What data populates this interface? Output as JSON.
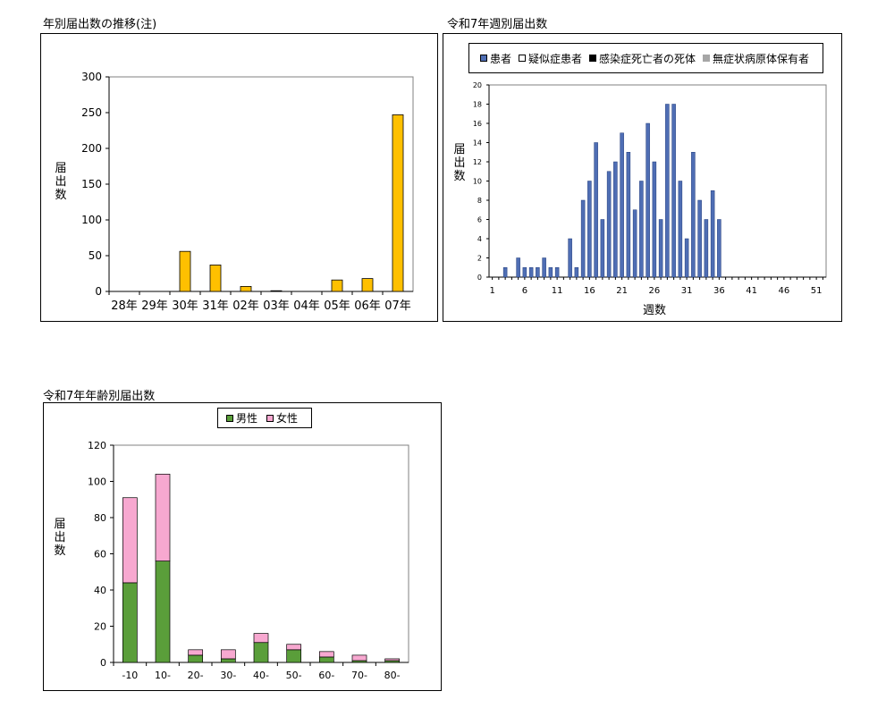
{
  "charts": {
    "annual": {
      "title": "年別届出数の推移(注)",
      "ylabel": "届\n出\n数",
      "color": "#FFC000",
      "chart_data": {
        "type": "bar",
        "title": "年別届出数の推移(注)",
        "ylabel": "届出数",
        "categories": [
          "28年",
          "29年",
          "30年",
          "31年",
          "02年",
          "03年",
          "04年",
          "05年",
          "06年",
          "07年"
        ],
        "values": [
          0,
          0,
          56,
          37,
          7,
          1,
          0,
          16,
          18,
          247
        ],
        "ylim": [
          0,
          300
        ],
        "yticks": [
          0,
          50,
          100,
          150,
          200,
          250,
          300
        ]
      }
    },
    "weekly": {
      "title": "令和7年週別届出数",
      "ylabel": "届\n出\n数",
      "xlabel": "週数",
      "legend": [
        {
          "label": "患者",
          "color": "#4F6EB4"
        },
        {
          "label": "疑似症患者",
          "color": "#FFFFFF"
        },
        {
          "label": "感染症死亡者の死体",
          "color": "#000000"
        },
        {
          "label": "無症状病原体保有者",
          "color": "#A6A6A6"
        }
      ],
      "chart_data": {
        "type": "bar",
        "title": "令和7年週別届出数",
        "xlabel": "週数",
        "ylabel": "届出数",
        "x": [
          1,
          2,
          3,
          4,
          5,
          6,
          7,
          8,
          9,
          10,
          11,
          12,
          13,
          14,
          15,
          16,
          17,
          18,
          19,
          20,
          21,
          22,
          23,
          24,
          25,
          26,
          27,
          28,
          29,
          30,
          31,
          32,
          33,
          34,
          35,
          36,
          37,
          38,
          39,
          40,
          41,
          42,
          43,
          44,
          45,
          46,
          47,
          48,
          49,
          50,
          51,
          52
        ],
        "series": [
          {
            "name": "患者",
            "values": [
              0,
              0,
              1,
              0,
              2,
              1,
              1,
              1,
              2,
              1,
              1,
              0,
              4,
              1,
              8,
              10,
              14,
              6,
              11,
              12,
              15,
              13,
              7,
              10,
              16,
              12,
              6,
              18,
              18,
              10,
              4,
              13,
              8,
              6,
              9,
              6,
              0,
              0,
              0,
              0,
              0,
              0,
              0,
              0,
              0,
              0,
              0,
              0,
              0,
              0,
              0,
              0
            ]
          },
          {
            "name": "疑似症患者",
            "values": [
              0,
              0,
              0,
              0,
              0,
              0,
              0,
              0,
              0,
              0,
              0,
              0,
              0,
              0,
              0,
              0,
              0,
              0,
              0,
              0,
              0,
              0,
              0,
              0,
              0,
              0,
              0,
              0,
              0,
              0,
              0,
              0,
              0,
              0,
              0,
              0,
              0,
              0,
              0,
              0,
              0,
              0,
              0,
              0,
              0,
              0,
              0,
              0,
              0,
              0,
              0,
              0
            ]
          },
          {
            "name": "感染症死亡者の死体",
            "values": [
              0,
              0,
              0,
              0,
              0,
              0,
              0,
              0,
              0,
              0,
              0,
              0,
              0,
              0,
              0,
              0,
              0,
              0,
              0,
              0,
              0,
              0,
              0,
              0,
              0,
              0,
              0,
              0,
              0,
              0,
              0,
              0,
              0,
              0,
              0,
              0,
              0,
              0,
              0,
              0,
              0,
              0,
              0,
              0,
              0,
              0,
              0,
              0,
              0,
              0,
              0,
              0
            ]
          },
          {
            "name": "無症状病原体保有者",
            "values": [
              0,
              0,
              0,
              0,
              0,
              0,
              0,
              0,
              0,
              0,
              0,
              0,
              0,
              0,
              0,
              0,
              0,
              0,
              0,
              0,
              0,
              0,
              0,
              0,
              0,
              0,
              0,
              0,
              0,
              0,
              0,
              0,
              0,
              0,
              0,
              0,
              0,
              0,
              0,
              0,
              0,
              0,
              0,
              0,
              0,
              0,
              0,
              0,
              0,
              0,
              0,
              0
            ]
          }
        ],
        "xticks": [
          1,
          6,
          11,
          16,
          21,
          26,
          31,
          36,
          41,
          46,
          51
        ],
        "ylim": [
          0,
          20
        ],
        "yticks": [
          0,
          2,
          4,
          6,
          8,
          10,
          12,
          14,
          16,
          18,
          20
        ],
        "legend": "top"
      }
    },
    "age": {
      "title": "令和7年年齢別届出数",
      "ylabel": "届\n出\n数",
      "legend": [
        {
          "label": "男性",
          "color": "#5A9E3A"
        },
        {
          "label": "女性",
          "color": "#F7A8D0"
        }
      ],
      "chart_data": {
        "type": "bar",
        "stacked": true,
        "title": "令和7年年齢別届出数",
        "ylabel": "届出数",
        "categories": [
          "-10",
          "10-",
          "20-",
          "30-",
          "40-",
          "50-",
          "60-",
          "70-",
          "80-"
        ],
        "series": [
          {
            "name": "男性",
            "values": [
              44,
              56,
              4,
              2,
              11,
              7,
              3,
              1,
              1
            ]
          },
          {
            "name": "女性",
            "values": [
              47,
              48,
              3,
              5,
              5,
              3,
              3,
              3,
              1
            ]
          }
        ],
        "ylim": [
          0,
          120
        ],
        "yticks": [
          0,
          20,
          40,
          60,
          80,
          100,
          120
        ],
        "legend": "top"
      }
    }
  }
}
